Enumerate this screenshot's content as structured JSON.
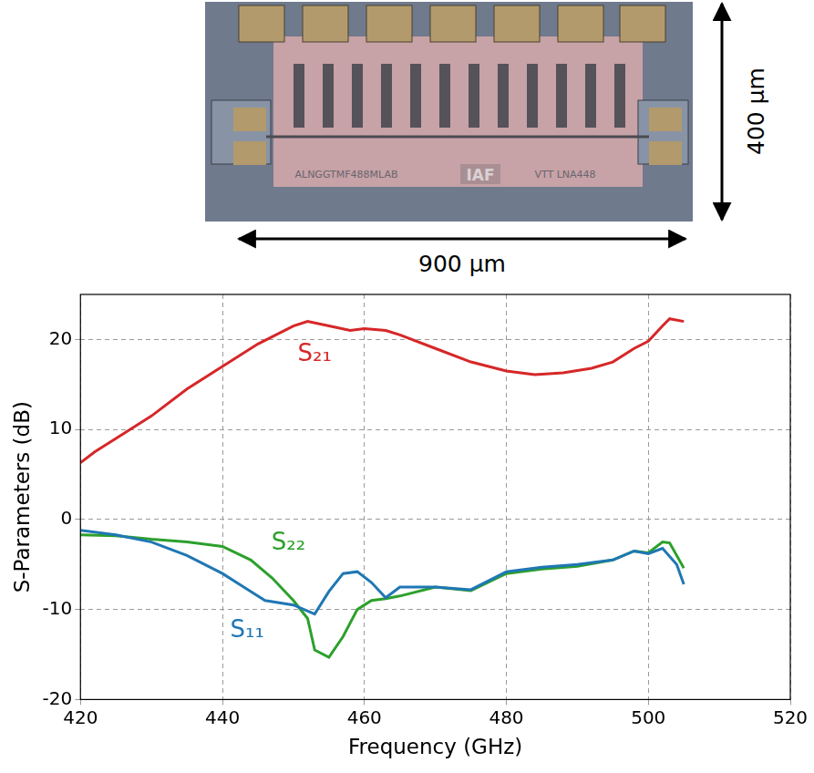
{
  "photo": {
    "chip_labels": [
      "ALNGGTMF488MLAB",
      "IAF",
      "VTT LNA448"
    ],
    "height_label": "400 µm",
    "width_label": "900 µm"
  },
  "chart_data": {
    "type": "line",
    "x_label": "Frequency (GHz)",
    "y_label": "S-Parameters (dB)",
    "xlim": [
      420,
      520
    ],
    "xticks": [
      420,
      440,
      460,
      480,
      500,
      520
    ],
    "ylim": [
      -20,
      25
    ],
    "yticks": [
      -20,
      -10,
      0,
      10,
      20
    ],
    "grid": true,
    "series": [
      {
        "name": "S₂₁",
        "color": "#d62728",
        "x": [
          420,
          422,
          425,
          430,
          435,
          440,
          445,
          450,
          452,
          455,
          458,
          460,
          463,
          465,
          470,
          475,
          480,
          484,
          488,
          492,
          495,
          498,
          500,
          502,
          503,
          505
        ],
        "values": [
          6.3,
          7.5,
          9,
          11.5,
          14.5,
          17,
          19.5,
          21.5,
          22,
          21.5,
          21,
          21.2,
          21,
          20.5,
          19,
          17.5,
          16.5,
          16.1,
          16.3,
          16.8,
          17.5,
          19,
          19.8,
          21.5,
          22.3,
          22
        ]
      },
      {
        "name": "S₁₁",
        "color": "#1f77b4",
        "x": [
          420,
          425,
          430,
          435,
          440,
          443,
          446,
          450,
          453,
          455,
          457,
          459,
          461,
          463,
          465,
          470,
          475,
          480,
          485,
          490,
          495,
          498,
          500,
          502,
          504,
          505
        ],
        "values": [
          -1.2,
          -1.7,
          -2.5,
          -4,
          -6,
          -7.5,
          -9,
          -9.5,
          -10.5,
          -8,
          -6,
          -5.8,
          -7,
          -8.7,
          -7.5,
          -7.5,
          -7.8,
          -5.8,
          -5.3,
          -5,
          -4.5,
          -3.5,
          -3.8,
          -3.2,
          -5,
          -7.2
        ]
      },
      {
        "name": "S₂₂",
        "color": "#2ca02c",
        "x": [
          420,
          425,
          430,
          435,
          440,
          444,
          447,
          450,
          452,
          453,
          455,
          457,
          459,
          461,
          463,
          465,
          470,
          475,
          480,
          485,
          490,
          495,
          498,
          500,
          502,
          503,
          505
        ],
        "values": [
          -1.7,
          -1.8,
          -2.2,
          -2.5,
          -3,
          -4.5,
          -6.5,
          -9,
          -11,
          -14.5,
          -15.3,
          -13,
          -10,
          -9,
          -8.8,
          -8.5,
          -7.5,
          -7.9,
          -6,
          -5.5,
          -5.2,
          -4.5,
          -3.5,
          -3.7,
          -2.5,
          -2.6,
          -5.4
        ]
      }
    ]
  }
}
